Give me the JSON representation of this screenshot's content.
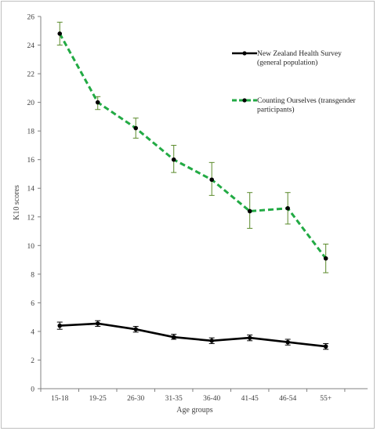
{
  "chart_data": {
    "type": "line",
    "title": "",
    "xlabel": "Age groups",
    "ylabel": "K10 scores",
    "ylim": [
      0,
      26
    ],
    "yticks": [
      0,
      2,
      4,
      6,
      8,
      10,
      12,
      14,
      16,
      18,
      20,
      22,
      24,
      26
    ],
    "categories": [
      "15-18",
      "19-25",
      "26-30",
      "31-35",
      "36-40",
      "41-45",
      "46-54",
      "55+"
    ],
    "grid": false,
    "legend_position": "top-right",
    "series": [
      {
        "name": "New Zealand Health Survey (general population)",
        "legend_lines": [
          "New Zealand Health Survey",
          "(general population)"
        ],
        "color": "#000000",
        "dash": "solid",
        "values": [
          4.4,
          4.55,
          4.15,
          3.6,
          3.35,
          3.55,
          3.25,
          2.95
        ],
        "err_low": [
          4.15,
          4.35,
          3.95,
          3.45,
          3.15,
          3.35,
          3.05,
          2.75
        ],
        "err_high": [
          4.65,
          4.75,
          4.35,
          3.8,
          3.55,
          3.75,
          3.45,
          3.15
        ]
      },
      {
        "name": "Counting Ourselves (transgender participants)",
        "legend_lines": [
          "Counting Ourselves (transgender",
          "participants)"
        ],
        "color": "#22aa44",
        "dash": "dashed",
        "values": [
          24.8,
          20.0,
          18.2,
          16.0,
          14.6,
          12.4,
          12.6,
          9.1
        ],
        "err_low": [
          24.0,
          19.5,
          17.5,
          15.1,
          13.5,
          11.2,
          11.5,
          8.1
        ],
        "err_high": [
          25.6,
          20.4,
          18.9,
          17.0,
          15.8,
          13.7,
          13.7,
          10.1
        ]
      }
    ]
  }
}
